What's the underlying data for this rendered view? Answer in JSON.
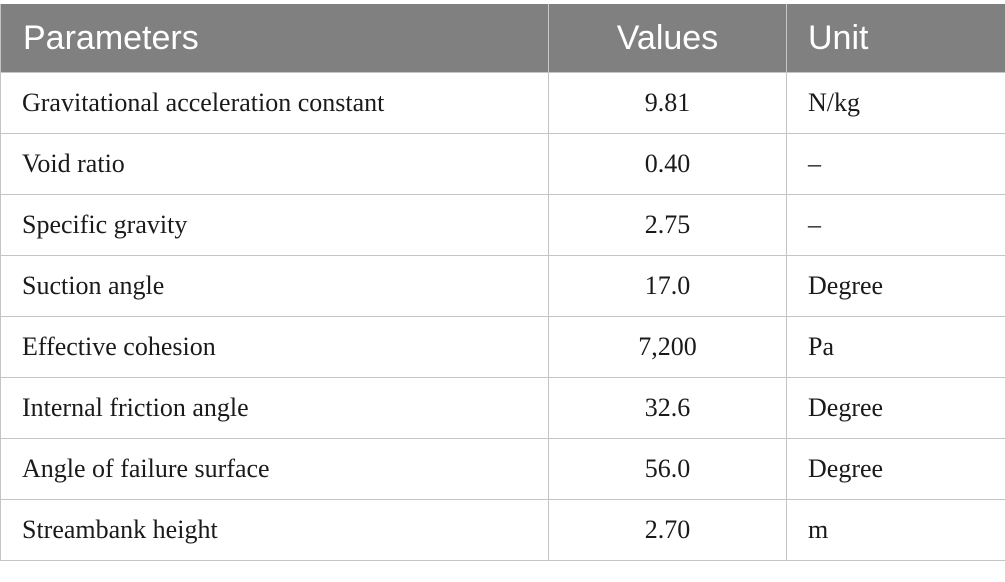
{
  "table": {
    "headers": {
      "parameters": "Parameters",
      "values": "Values",
      "unit": "Unit"
    },
    "rows": [
      {
        "parameter": "Gravitational acceleration constant",
        "value": "9.81",
        "unit": "N/kg"
      },
      {
        "parameter": "Void ratio",
        "value": "0.40",
        "unit": "–"
      },
      {
        "parameter": "Specific gravity",
        "value": "2.75",
        "unit": "–"
      },
      {
        "parameter": "Suction angle",
        "value": "17.0",
        "unit": "Degree"
      },
      {
        "parameter": "Effective cohesion",
        "value": "7,200",
        "unit": "Pa"
      },
      {
        "parameter": "Internal friction angle",
        "value": "32.6",
        "unit": "Degree"
      },
      {
        "parameter": "Angle of failure surface",
        "value": "56.0",
        "unit": "Degree"
      },
      {
        "parameter": "Streambank height",
        "value": "2.70",
        "unit": "m"
      }
    ]
  },
  "colors": {
    "header_background": "#808080",
    "header_text": "#ffffff",
    "grid_lines": "#c4c4c4"
  }
}
